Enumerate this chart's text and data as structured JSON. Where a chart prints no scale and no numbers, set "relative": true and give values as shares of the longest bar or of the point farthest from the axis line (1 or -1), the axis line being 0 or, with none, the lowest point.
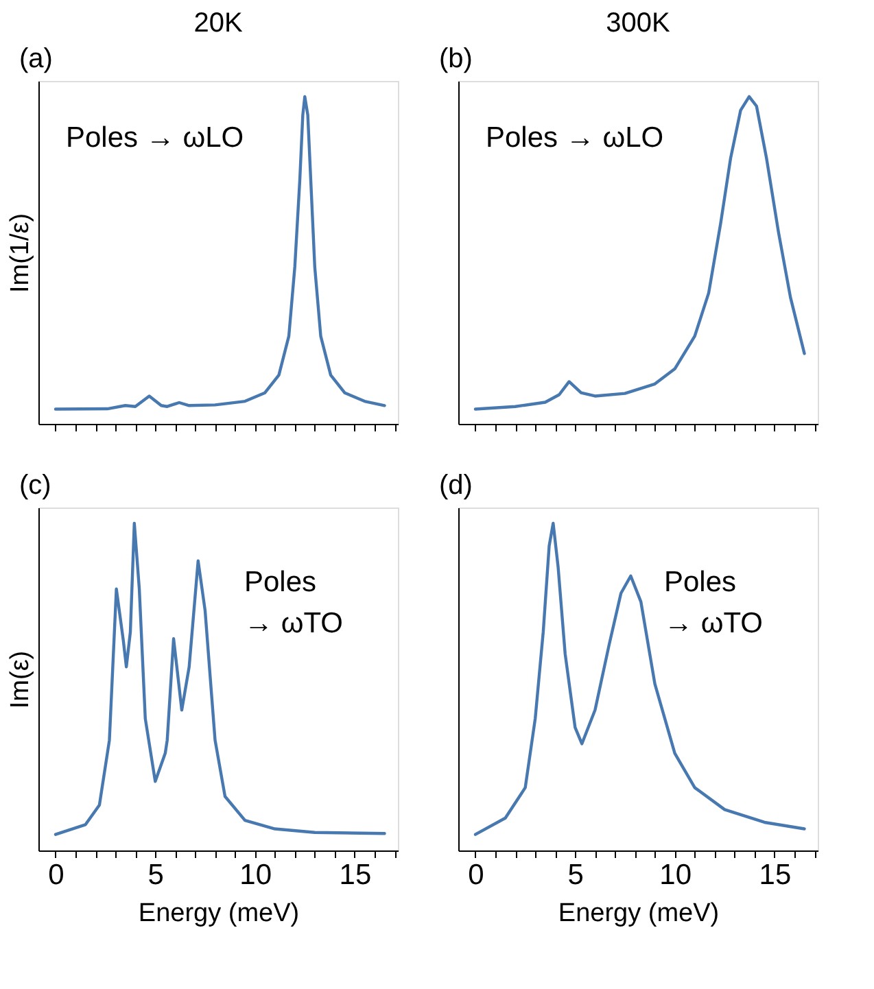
{
  "chart_data": [
    {
      "type": "line",
      "title": "20K",
      "ylabel": "Im(1/ε)",
      "annotations": [
        "(a)",
        "Poles → ωLO"
      ],
      "relative": true,
      "color": "#4878b0",
      "tick_labels": false,
      "grid": false,
      "xlim": [
        -0.86,
        17.17
      ],
      "xticks": [
        {
          "value": 0,
          "label": null
        },
        {
          "value": 1,
          "label": null
        },
        {
          "value": 2,
          "label": null
        },
        {
          "value": 3,
          "label": null
        },
        {
          "value": 4,
          "label": null
        },
        {
          "value": 5,
          "label": null
        },
        {
          "value": 6,
          "label": null
        },
        {
          "value": 7,
          "label": null
        },
        {
          "value": 8,
          "label": null
        },
        {
          "value": 9,
          "label": null
        },
        {
          "value": 10,
          "label": null
        },
        {
          "value": 11,
          "label": null
        },
        {
          "value": 12,
          "label": null
        },
        {
          "value": 13,
          "label": null
        },
        {
          "value": 14,
          "label": null
        },
        {
          "value": 15,
          "label": null
        },
        {
          "value": 16,
          "label": null
        },
        {
          "value": 17,
          "label": null
        }
      ],
      "x": [
        0,
        2.6,
        3.5,
        4.0,
        4.7,
        5.3,
        5.6,
        6.2,
        6.7,
        8,
        9.5,
        10.5,
        11.2,
        11.7,
        12.0,
        12.25,
        12.4,
        12.5,
        12.65,
        12.8,
        13.0,
        13.3,
        13.8,
        14.5,
        15.5,
        16.5
      ],
      "values": [
        0.045,
        0.046,
        0.056,
        0.053,
        0.085,
        0.056,
        0.053,
        0.065,
        0.056,
        0.058,
        0.069,
        0.095,
        0.149,
        0.268,
        0.48,
        0.745,
        0.944,
        1.0,
        0.944,
        0.745,
        0.48,
        0.268,
        0.149,
        0.095,
        0.069,
        0.056
      ]
    },
    {
      "type": "line",
      "title": "300K",
      "annotations": [
        "(b)",
        "Poles → ωLO"
      ],
      "relative": true,
      "color": "#4878b0",
      "tick_labels": false,
      "grid": false,
      "xlim": [
        -0.86,
        17.17
      ],
      "xticks": [
        {
          "value": 0,
          "label": null
        },
        {
          "value": 1,
          "label": null
        },
        {
          "value": 2,
          "label": null
        },
        {
          "value": 3,
          "label": null
        },
        {
          "value": 4,
          "label": null
        },
        {
          "value": 5,
          "label": null
        },
        {
          "value": 6,
          "label": null
        },
        {
          "value": 7,
          "label": null
        },
        {
          "value": 8,
          "label": null
        },
        {
          "value": 9,
          "label": null
        },
        {
          "value": 10,
          "label": null
        },
        {
          "value": 11,
          "label": null
        },
        {
          "value": 12,
          "label": null
        },
        {
          "value": 13,
          "label": null
        },
        {
          "value": 14,
          "label": null
        },
        {
          "value": 15,
          "label": null
        },
        {
          "value": 16,
          "label": null
        },
        {
          "value": 17,
          "label": null
        }
      ],
      "x": [
        0,
        2,
        3.5,
        4.2,
        4.7,
        5.3,
        6,
        7.5,
        9,
        10,
        11,
        11.7,
        12.3,
        12.8,
        13.3,
        13.73,
        14.1,
        14.6,
        15.2,
        15.8,
        16.5
      ],
      "values": [
        0.045,
        0.053,
        0.066,
        0.089,
        0.129,
        0.095,
        0.085,
        0.093,
        0.122,
        0.168,
        0.268,
        0.4,
        0.613,
        0.812,
        0.958,
        1.0,
        0.971,
        0.812,
        0.586,
        0.387,
        0.215
      ]
    },
    {
      "type": "line",
      "xlabel": "Energy (meV)",
      "ylabel": "Im(ε)",
      "annotations": [
        "(c)",
        "Poles\n→ ωTO"
      ],
      "relative": true,
      "color": "#4878b0",
      "tick_labels": "x",
      "grid": false,
      "xlim": [
        -0.86,
        17.17
      ],
      "xticks": [
        0,
        {
          "value": 1,
          "label": null
        },
        {
          "value": 2,
          "label": null
        },
        {
          "value": 3,
          "label": null
        },
        {
          "value": 4,
          "label": null
        },
        5,
        {
          "value": 6,
          "label": null
        },
        {
          "value": 7,
          "label": null
        },
        {
          "value": 8,
          "label": null
        },
        {
          "value": 9,
          "label": null
        },
        10,
        {
          "value": 11,
          "label": null
        },
        {
          "value": 12,
          "label": null
        },
        {
          "value": 13,
          "label": null
        },
        {
          "value": 14,
          "label": null
        },
        15,
        {
          "value": 16,
          "label": null
        },
        {
          "value": 17,
          "label": null
        }
      ],
      "x": [
        0,
        1.5,
        2.2,
        2.7,
        3.05,
        3.4,
        3.55,
        3.75,
        3.95,
        4.2,
        4.5,
        5.0,
        5.5,
        5.6,
        5.92,
        6.33,
        6.7,
        7.15,
        7.5,
        8.0,
        8.5,
        9.5,
        11,
        13,
        16.5
      ],
      "values": [
        0.049,
        0.079,
        0.139,
        0.337,
        0.799,
        0.641,
        0.561,
        0.667,
        1.0,
        0.799,
        0.403,
        0.211,
        0.297,
        0.337,
        0.647,
        0.429,
        0.561,
        0.885,
        0.733,
        0.337,
        0.165,
        0.092,
        0.066,
        0.055,
        0.052
      ]
    },
    {
      "type": "line",
      "xlabel": "Energy (meV)",
      "annotations": [
        "(d)",
        "Poles\n→ ωTO"
      ],
      "relative": true,
      "color": "#4878b0",
      "tick_labels": "x",
      "grid": false,
      "xlim": [
        -0.86,
        17.17
      ],
      "xticks": [
        0,
        {
          "value": 1,
          "label": null
        },
        {
          "value": 2,
          "label": null
        },
        {
          "value": 3,
          "label": null
        },
        {
          "value": 4,
          "label": null
        },
        5,
        {
          "value": 6,
          "label": null
        },
        {
          "value": 7,
          "label": null
        },
        {
          "value": 8,
          "label": null
        },
        {
          "value": 9,
          "label": null
        },
        10,
        {
          "value": 11,
          "label": null
        },
        {
          "value": 12,
          "label": null
        },
        {
          "value": 13,
          "label": null
        },
        {
          "value": 14,
          "label": null
        },
        15,
        {
          "value": 16,
          "label": null
        },
        {
          "value": 17,
          "label": null
        }
      ],
      "x": [
        0,
        1.5,
        2.5,
        3.0,
        3.4,
        3.7,
        3.9,
        4.15,
        4.5,
        5.0,
        5.34,
        6,
        6.7,
        7.3,
        7.79,
        8.3,
        9,
        10,
        11,
        12.5,
        14.5,
        16.5
      ],
      "values": [
        0.049,
        0.099,
        0.192,
        0.403,
        0.667,
        0.931,
        1.0,
        0.865,
        0.601,
        0.376,
        0.326,
        0.429,
        0.627,
        0.786,
        0.839,
        0.76,
        0.509,
        0.297,
        0.192,
        0.125,
        0.086,
        0.066
      ]
    }
  ]
}
